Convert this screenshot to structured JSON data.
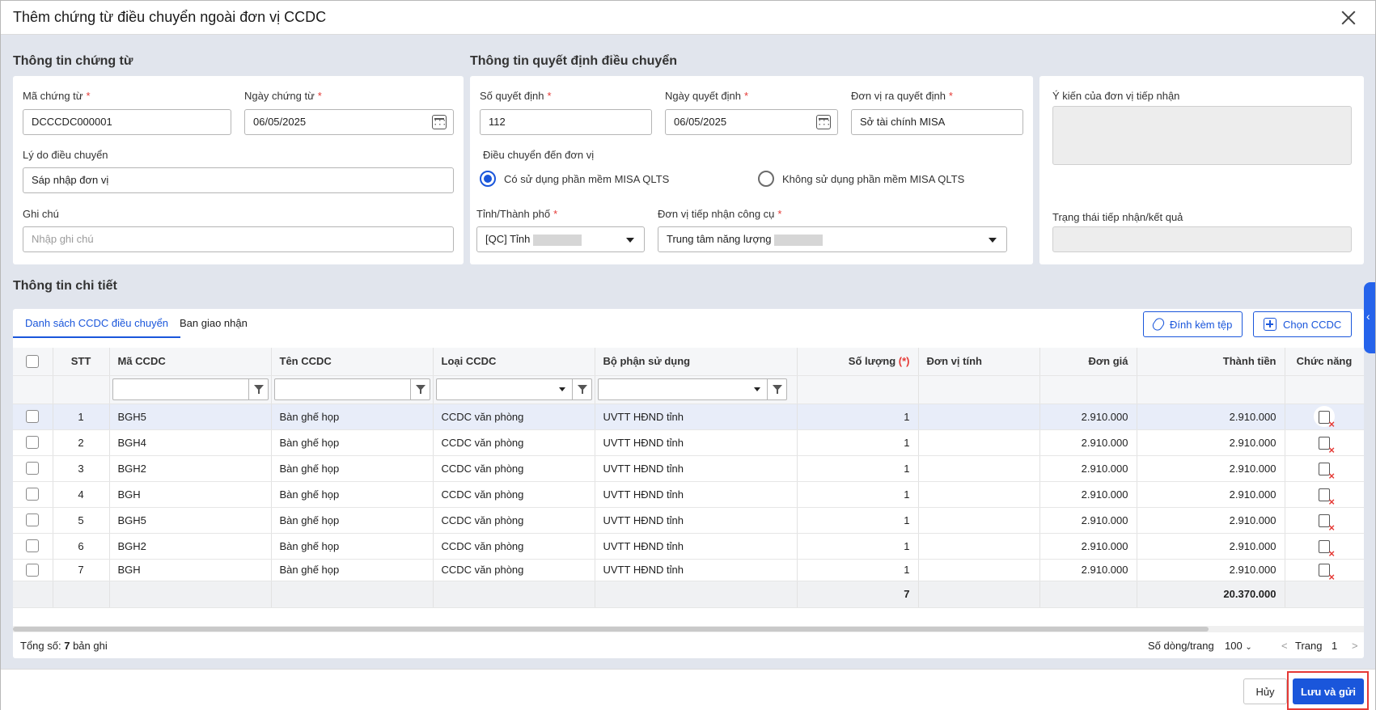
{
  "dialog": {
    "title": "Thêm chứng từ điều chuyển ngoài đơn vị CCDC"
  },
  "voucher": {
    "section_title": "Thông tin chứng từ",
    "code_label": "Mã chứng từ",
    "code_value": "DCCCDC000001",
    "date_label": "Ngày chứng từ",
    "date_value": "06/05/2025",
    "reason_label": "Lý do điều chuyển",
    "reason_value": "Sáp nhập đơn vị",
    "note_label": "Ghi chú",
    "note_placeholder": "Nhập ghi chú",
    "required_mark": "*"
  },
  "decision": {
    "section_title": "Thông tin quyết định điều chuyển",
    "number_label": "Số quyết định",
    "number_value": "112",
    "date_label": "Ngày quyết định",
    "date_value": "06/05/2025",
    "issuer_label": "Đơn vị ra quyết định",
    "issuer_value": "Sở tài chính MISA",
    "transfer_to_label": "Điều chuyển đến đơn vị",
    "radio_yes": "Có sử dụng phần mềm MISA QLTS",
    "radio_no": "Không sử dụng phần mềm MISA QLTS",
    "province_label": "Tỉnh/Thành phố",
    "province_value": "[QC] Tỉnh",
    "receiver_label": "Đơn vị tiếp nhận công cụ",
    "receiver_value": "Trung tâm năng lượng"
  },
  "receiver_panel": {
    "opinion_label": "Ý kiến của đơn vị tiếp nhận",
    "status_label": "Trạng thái tiếp nhận/kết quả"
  },
  "detail": {
    "section_title": "Thông tin chi tiết",
    "tabs": [
      "Danh sách CCDC điều chuyển",
      "Ban giao nhận"
    ],
    "attach_button": "Đính kèm tệp",
    "choose_button": "Chọn CCDC",
    "columns": {
      "stt": "STT",
      "code": "Mã CCDC",
      "name": "Tên CCDC",
      "type": "Loại CCDC",
      "dept": "Bộ phận sử dụng",
      "qty": "Số lượng",
      "qty_req": "(*)",
      "unit": "Đơn vị tính",
      "price": "Đơn giá",
      "total": "Thành tiền",
      "action": "Chức năng"
    },
    "rows": [
      {
        "stt": "1",
        "code": "BGH5",
        "name": "Bàn ghế họp",
        "type": "CCDC văn phòng",
        "dept": "UVTT HĐND tỉnh",
        "qty": "1",
        "unit": "",
        "price": "2.910.000",
        "total": "2.910.000"
      },
      {
        "stt": "2",
        "code": "BGH4",
        "name": "Bàn ghế họp",
        "type": "CCDC văn phòng",
        "dept": "UVTT HĐND tỉnh",
        "qty": "1",
        "unit": "",
        "price": "2.910.000",
        "total": "2.910.000"
      },
      {
        "stt": "3",
        "code": "BGH2",
        "name": "Bàn ghế họp",
        "type": "CCDC văn phòng",
        "dept": "UVTT HĐND tỉnh",
        "qty": "1",
        "unit": "",
        "price": "2.910.000",
        "total": "2.910.000"
      },
      {
        "stt": "4",
        "code": "BGH",
        "name": "Bàn ghế họp",
        "type": "CCDC văn phòng",
        "dept": "UVTT HĐND tỉnh",
        "qty": "1",
        "unit": "",
        "price": "2.910.000",
        "total": "2.910.000"
      },
      {
        "stt": "5",
        "code": "BGH5",
        "name": "Bàn ghế họp",
        "type": "CCDC văn phòng",
        "dept": "UVTT HĐND tỉnh",
        "qty": "1",
        "unit": "",
        "price": "2.910.000",
        "total": "2.910.000"
      },
      {
        "stt": "6",
        "code": "BGH2",
        "name": "Bàn ghế họp",
        "type": "CCDC văn phòng",
        "dept": "UVTT HĐND tỉnh",
        "qty": "1",
        "unit": "",
        "price": "2.910.000",
        "total": "2.910.000"
      },
      {
        "stt": "7",
        "code": "BGH",
        "name": "Bàn ghế họp",
        "type": "CCDC văn phòng",
        "dept": "UVTT HĐND tỉnh",
        "qty": "1",
        "unit": "",
        "price": "2.910.000",
        "total": "2.910.000"
      }
    ],
    "summary": {
      "qty": "7",
      "total": "20.370.000"
    },
    "footer": {
      "total_prefix": "Tổng số:",
      "total_count": "7",
      "total_suffix": "bản ghi",
      "page_size_label": "Số dòng/trang",
      "page_size_value": "100",
      "page_label": "Trang",
      "page_value": "1",
      "prev": "<",
      "next": ">"
    }
  },
  "actions": {
    "cancel": "Hủy",
    "save_send": "Lưu và gửi"
  },
  "colors": {
    "accent": "#1a56db",
    "required": "#e53935",
    "highlight": "#e53935"
  },
  "icons": [
    "close-icon",
    "calendar-icon",
    "chevron-down-icon",
    "paperclip-icon",
    "plus-square-icon",
    "filter-icon",
    "remove-row-icon",
    "collapse-left-icon"
  ]
}
